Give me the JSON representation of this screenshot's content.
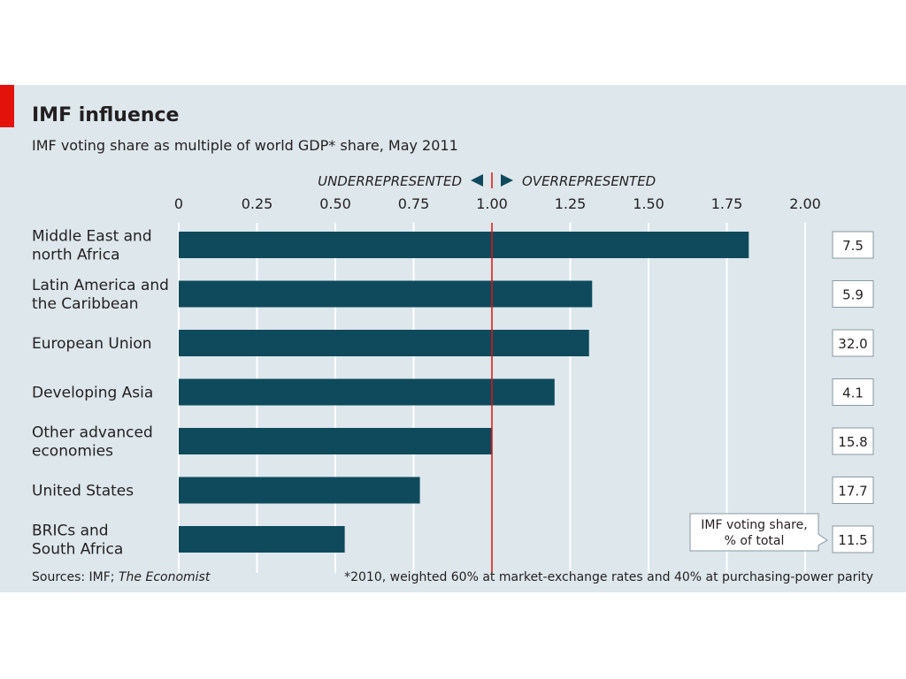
{
  "chart_data": {
    "type": "bar",
    "title": "IMF influence",
    "subtitle": "IMF voting share as multiple of world GDP* share, May 2011",
    "orientation": "horizontal",
    "categories": [
      [
        "Middle East and",
        "north Africa"
      ],
      [
        "Latin America and",
        "the Caribbean"
      ],
      [
        "European Union"
      ],
      [
        "Developing Asia"
      ],
      [
        "Other advanced",
        "economies"
      ],
      [
        "United States"
      ],
      [
        "BRICs and",
        "South Africa"
      ]
    ],
    "values": [
      1.82,
      1.32,
      1.31,
      1.2,
      1.0,
      0.77,
      0.53
    ],
    "voting_share_pct": [
      "7.5",
      "5.9",
      "32.0",
      "4.1",
      "15.8",
      "17.7",
      "11.5"
    ],
    "voting_share_label": [
      "IMF voting share,",
      "% of total"
    ],
    "xlim": [
      0,
      2.0
    ],
    "xticks": [
      "0",
      "0.25",
      "0.50",
      "0.75",
      "1.00",
      "1.25",
      "1.50",
      "1.75",
      "2.00"
    ],
    "reference_value": 1.0,
    "annotations": {
      "under": "UNDERREPRESENTED",
      "over": "OVERREPRESENTED"
    },
    "grid": true,
    "source": [
      "Sources: IMF; ",
      "The Economist"
    ],
    "footnote": "*2010, weighted 60% at market-exchange rates and 40% at purchasing-power parity"
  },
  "colors": {
    "panel_bg": "#dde7ec",
    "bar": "#0e4a5c",
    "reference_line": "#e3120b",
    "grid": "#ffffff",
    "brand_flag": "#e3120b",
    "annotation_text": "#245d73"
  }
}
